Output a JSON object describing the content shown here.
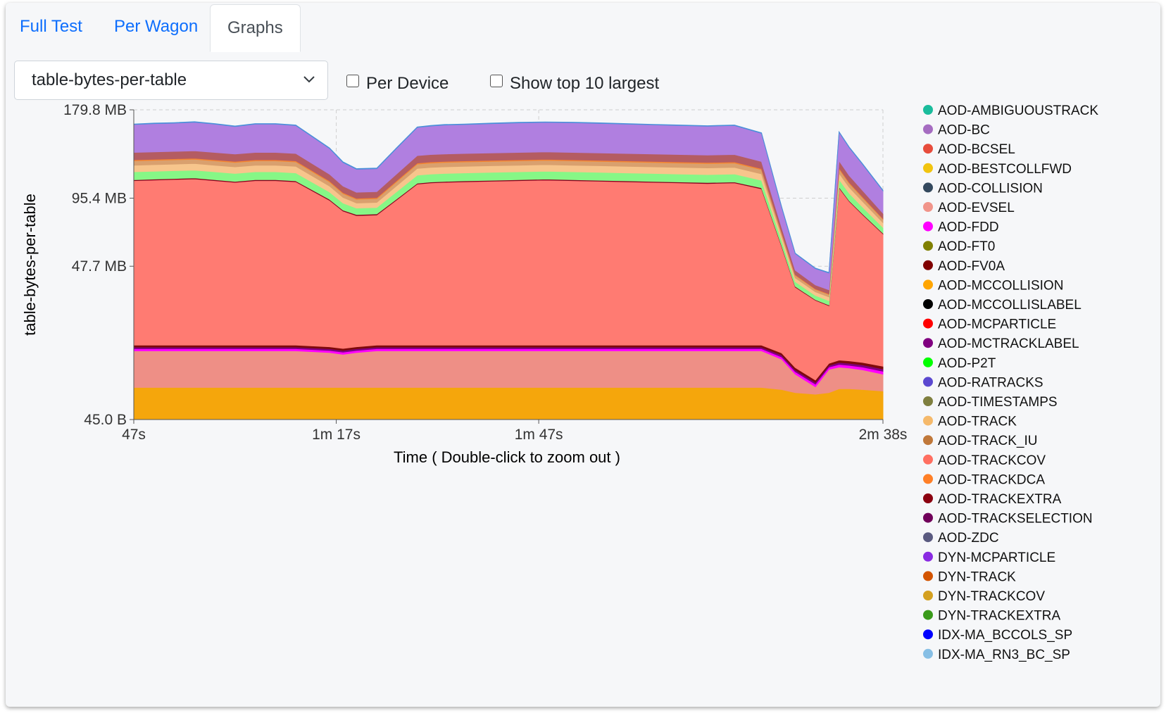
{
  "tabs": [
    {
      "label": "Full Test",
      "active": false
    },
    {
      "label": "Per Wagon",
      "active": false
    },
    {
      "label": "Graphs",
      "active": true
    }
  ],
  "metric_select": {
    "value": "table-bytes-per-table"
  },
  "checkboxes": {
    "per_device": {
      "label": "Per Device",
      "checked": false
    },
    "top10": {
      "label": "Show top 10 largest",
      "checked": false
    }
  },
  "chart_data": {
    "type": "area",
    "stacked": true,
    "ylabel": "table-bytes-per-table",
    "xlabel": "Time ( Double-click to zoom out )",
    "x_tick_labels": [
      "47s",
      "1m 17s",
      "1m 47s",
      "2m 38s"
    ],
    "x_ticks_seconds": [
      47,
      77,
      107,
      158
    ],
    "y_tick_labels": [
      "45.0 B",
      "47.7 MB",
      "95.4 MB",
      "179.8 MB"
    ],
    "y_scale": "power (compressed toward zero)",
    "xlim_seconds": [
      47,
      158
    ],
    "grid": true,
    "legend_position": "right",
    "x": [
      47,
      50,
      53,
      56,
      59,
      62,
      65,
      68,
      71,
      76,
      78,
      80,
      83,
      86,
      89,
      91,
      93,
      96,
      100,
      104,
      108,
      112,
      116,
      120,
      124,
      128,
      132,
      136,
      140,
      143,
      145,
      148,
      150,
      151.5,
      153,
      155,
      158
    ],
    "series": [
      {
        "name": "AOD-MCCOLLISION",
        "color": "#f5a60c",
        "values": [
          2.5,
          2.5,
          2.5,
          2.5,
          2.5,
          2.5,
          2.5,
          2.5,
          2.5,
          2.5,
          2.5,
          2.5,
          2.5,
          2.5,
          2.5,
          2.5,
          2.5,
          2.5,
          2.5,
          2.5,
          2.5,
          2.5,
          2.5,
          2.5,
          2.5,
          2.5,
          2.5,
          2.5,
          2.5,
          2.2,
          1.8,
          1.6,
          1.8,
          2.3,
          2.3,
          2.2,
          2.0
        ]
      },
      {
        "name": "AOD-EVSEL",
        "color": "#ee8f86",
        "values": [
          8,
          8,
          8,
          8,
          8,
          8,
          8,
          8,
          8,
          7.5,
          7,
          7.5,
          8,
          8,
          8,
          8,
          8,
          8,
          8,
          8,
          8,
          8,
          8,
          8,
          8,
          8,
          8,
          8,
          8,
          6,
          3,
          1,
          4,
          4,
          3.8,
          3.5,
          2.8
        ]
      },
      {
        "name": "AOD-FDD",
        "color": "#ff00ff",
        "values": [
          0.6,
          0.6,
          0.6,
          0.6,
          0.6,
          0.6,
          0.6,
          0.6,
          0.6,
          0.6,
          0.6,
          0.6,
          0.6,
          0.6,
          0.6,
          0.6,
          0.6,
          0.6,
          0.6,
          0.6,
          0.6,
          0.6,
          0.6,
          0.6,
          0.6,
          0.6,
          0.6,
          0.6,
          0.6,
          0.6,
          0.5,
          0.4,
          0.5,
          0.6,
          0.6,
          0.6,
          0.6
        ]
      },
      {
        "name": "AOD-MCTRACKLABEL",
        "color": "#7f007f",
        "values": [
          0.5,
          0.5,
          0.5,
          0.5,
          0.5,
          0.5,
          0.5,
          0.5,
          0.5,
          0.5,
          0.5,
          0.5,
          0.5,
          0.5,
          0.5,
          0.5,
          0.5,
          0.5,
          0.5,
          0.5,
          0.5,
          0.5,
          0.5,
          0.5,
          0.5,
          0.5,
          0.5,
          0.5,
          0.5,
          0.5,
          0.4,
          0.3,
          0.4,
          0.5,
          0.5,
          0.5,
          0.5
        ]
      },
      {
        "name": "AOD-FV0A",
        "color": "#7d0a0a",
        "values": [
          0.6,
          0.6,
          0.6,
          0.6,
          0.6,
          0.6,
          0.6,
          0.6,
          0.6,
          0.6,
          0.6,
          0.6,
          0.6,
          0.6,
          0.6,
          0.6,
          0.6,
          0.6,
          0.6,
          0.6,
          0.6,
          0.6,
          0.6,
          0.6,
          0.6,
          0.6,
          0.6,
          0.6,
          0.6,
          0.6,
          0.5,
          0.4,
          0.5,
          0.6,
          0.6,
          0.6,
          0.6
        ]
      },
      {
        "name": "AOD-TRACKCOV",
        "color": "#ff7b72",
        "values": [
          98,
          98.5,
          99,
          99.5,
          98,
          96.5,
          98,
          98,
          97,
          82,
          74,
          70,
          70,
          82,
          95,
          96,
          96.5,
          97,
          97.5,
          98,
          98.5,
          98,
          97.5,
          97,
          96.5,
          96,
          95.5,
          96,
          91,
          50,
          30,
          26,
          20,
          96,
          85,
          75,
          62
        ]
      },
      {
        "name": "AOD-TRACKEXTRA",
        "color": "#8b0020",
        "values": [
          0.8,
          0.8,
          0.8,
          0.8,
          0.8,
          0.8,
          0.8,
          0.8,
          0.8,
          0.8,
          0.8,
          0.8,
          0.8,
          0.8,
          0.8,
          0.8,
          0.8,
          0.8,
          0.8,
          0.8,
          0.8,
          0.8,
          0.8,
          0.8,
          0.8,
          0.8,
          0.8,
          0.8,
          0.8,
          0.6,
          0.4,
          0.3,
          0.3,
          0.7,
          0.6,
          0.6,
          0.5
        ]
      },
      {
        "name": "AOD-P2T",
        "color": "#86f786",
        "values": [
          7,
          7,
          7,
          7,
          7,
          7,
          7,
          7,
          7,
          6,
          5.5,
          5,
          5,
          6,
          7,
          7,
          7,
          7,
          7,
          7,
          7,
          7,
          7,
          7,
          7,
          7,
          7,
          7,
          6.5,
          3.5,
          2.5,
          2,
          2,
          6.5,
          6,
          5.2,
          4
        ]
      },
      {
        "name": "AOD-TRACK",
        "color": "#f7c58c",
        "values": [
          6,
          6,
          6,
          6,
          6,
          6,
          6,
          6,
          6,
          5,
          4.5,
          4,
          4,
          5,
          6,
          6,
          6,
          6,
          6,
          6,
          6,
          6,
          6,
          6,
          6,
          6,
          6,
          6,
          5.6,
          3,
          2,
          1.8,
          1.8,
          5.5,
          5,
          4.5,
          3.5
        ]
      },
      {
        "name": "AOD-TRACK_IU",
        "color": "#d9a06e",
        "values": [
          4,
          4,
          4,
          4,
          4,
          4,
          4,
          4,
          4,
          3.5,
          3.2,
          3,
          3,
          3.5,
          4,
          4,
          4,
          4,
          4,
          4,
          4,
          4,
          4,
          4,
          4,
          4,
          4,
          4,
          3.8,
          2,
          1.4,
          1.2,
          1.2,
          3.8,
          3.4,
          3,
          2.5
        ]
      },
      {
        "name": "AOD-TRACKDCA",
        "color": "#f58531",
        "values": [
          1,
          1,
          1,
          1,
          1,
          1,
          1,
          1,
          1,
          0.9,
          0.8,
          0.8,
          0.8,
          0.9,
          1,
          1,
          1,
          1,
          1,
          1,
          1,
          1,
          1,
          1,
          1,
          1,
          1,
          1,
          1,
          0.5,
          0.4,
          0.3,
          0.3,
          1,
          0.9,
          0.8,
          0.6
        ]
      },
      {
        "name": "AOD-TRACKSELECTION",
        "color": "#b45c62",
        "values": [
          7,
          7,
          7,
          7,
          7,
          7,
          7,
          7,
          7,
          6,
          5.5,
          5,
          5,
          6,
          7,
          7,
          7,
          7,
          7,
          7,
          7,
          7,
          7,
          7,
          7,
          7,
          7,
          7,
          6.5,
          3.5,
          2.5,
          2,
          2,
          6.5,
          6,
          5.2,
          4
        ]
      },
      {
        "name": "AOD-BC",
        "color": "#b07fe0",
        "values": [
          28,
          28.5,
          28.5,
          29,
          28.5,
          27.5,
          28.5,
          28.5,
          28,
          24,
          21,
          20,
          20,
          24,
          28,
          28.5,
          29,
          29,
          29.5,
          29.8,
          29.8,
          30,
          29.8,
          29.5,
          29.2,
          29,
          28.8,
          29,
          27.5,
          15,
          10,
          9,
          9,
          28,
          26,
          23,
          18
        ]
      },
      {
        "name": "IDX-MA_RN3_BC_SP",
        "color": "#4a90d9",
        "values": [
          0.5,
          0.5,
          0.5,
          0.5,
          0.5,
          0.5,
          0.5,
          0.5,
          0.5,
          0.5,
          0.5,
          0.5,
          0.5,
          0.5,
          0.5,
          0.5,
          0.5,
          0.5,
          0.5,
          0.5,
          0.5,
          0.5,
          0.5,
          0.5,
          0.5,
          0.5,
          0.5,
          0.5,
          0.5,
          0.4,
          0.3,
          0.3,
          0.3,
          0.5,
          0.5,
          0.5,
          0.4
        ]
      }
    ],
    "legend": [
      {
        "name": "AOD-AMBIGUOUSTRACK",
        "color": "#1abc9c"
      },
      {
        "name": "AOD-BC",
        "color": "#a56cc1"
      },
      {
        "name": "AOD-BCSEL",
        "color": "#e74c3c"
      },
      {
        "name": "AOD-BESTCOLLFWD",
        "color": "#f1c40f"
      },
      {
        "name": "AOD-COLLISION",
        "color": "#34495e"
      },
      {
        "name": "AOD-EVSEL",
        "color": "#f1948a"
      },
      {
        "name": "AOD-FDD",
        "color": "#ff00ff"
      },
      {
        "name": "AOD-FT0",
        "color": "#808000"
      },
      {
        "name": "AOD-FV0A",
        "color": "#800000"
      },
      {
        "name": "AOD-MCCOLLISION",
        "color": "#ffa500"
      },
      {
        "name": "AOD-MCCOLLISLABEL",
        "color": "#000000"
      },
      {
        "name": "AOD-MCPARTICLE",
        "color": "#ff0000"
      },
      {
        "name": "AOD-MCTRACKLABEL",
        "color": "#800080"
      },
      {
        "name": "AOD-P2T",
        "color": "#00ff00"
      },
      {
        "name": "AOD-RATRACKS",
        "color": "#5b48d0"
      },
      {
        "name": "AOD-TIMESTAMPS",
        "color": "#7f7f3f"
      },
      {
        "name": "AOD-TRACK",
        "color": "#f5b96b"
      },
      {
        "name": "AOD-TRACK_IU",
        "color": "#c0783a"
      },
      {
        "name": "AOD-TRACKCOV",
        "color": "#ff6f61"
      },
      {
        "name": "AOD-TRACKDCA",
        "color": "#ff7f27"
      },
      {
        "name": "AOD-TRACKEXTRA",
        "color": "#8b0010"
      },
      {
        "name": "AOD-TRACKSELECTION",
        "color": "#70005a"
      },
      {
        "name": "AOD-ZDC",
        "color": "#5a5a80"
      },
      {
        "name": "DYN-MCPARTICLE",
        "color": "#8a2be2"
      },
      {
        "name": "DYN-TRACK",
        "color": "#d35400"
      },
      {
        "name": "DYN-TRACKCOV",
        "color": "#d4a020"
      },
      {
        "name": "DYN-TRACKEXTRA",
        "color": "#3a9a1a"
      },
      {
        "name": "IDX-MA_BCCOLS_SP",
        "color": "#0000ff"
      },
      {
        "name": "IDX-MA_RN3_BC_SP",
        "color": "#87bfe5"
      }
    ]
  }
}
